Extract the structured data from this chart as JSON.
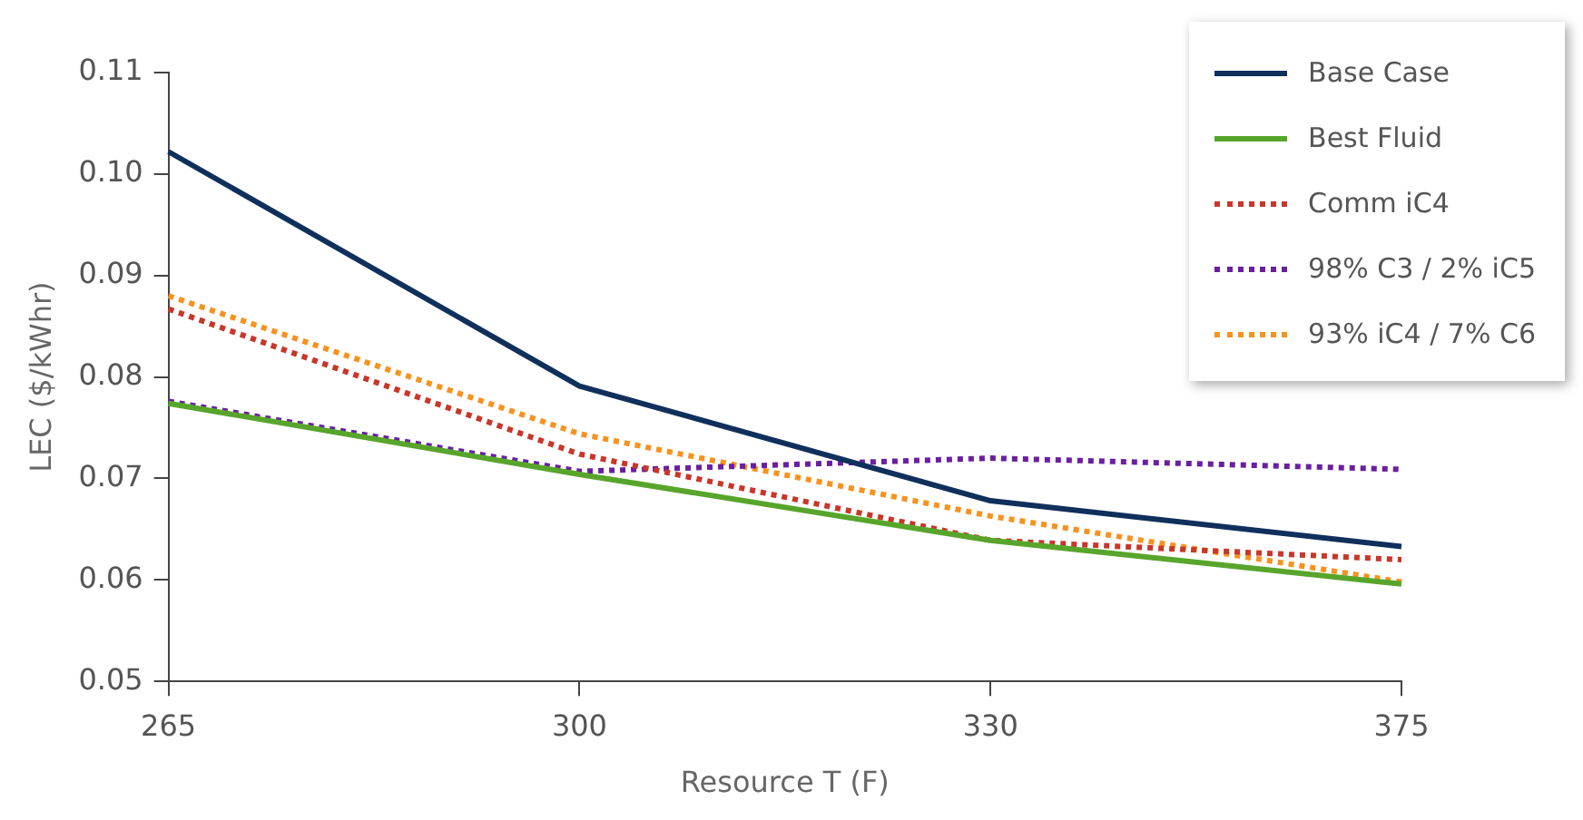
{
  "chart_data": {
    "type": "line",
    "xlabel": "Resource T (F)",
    "ylabel": "LEC ($/kWhr)",
    "categories": [
      "265",
      "300",
      "330",
      "375"
    ],
    "ylim": [
      0.05,
      0.11
    ],
    "yticks": [
      {
        "value": 0.05,
        "label": "0.05"
      },
      {
        "value": 0.06,
        "label": "0.06"
      },
      {
        "value": 0.07,
        "label": "0.07"
      },
      {
        "value": 0.08,
        "label": "0.08"
      },
      {
        "value": 0.09,
        "label": "0.09"
      },
      {
        "value": 0.1,
        "label": "0.10"
      },
      {
        "value": 0.11,
        "label": "0.11"
      }
    ],
    "grid": false,
    "legend": "top right",
    "marker": "none",
    "series": [
      {
        "name": "Base Case",
        "color": "#10305c",
        "line_style": "solid",
        "values": [
          0.1022,
          0.0791,
          0.0678,
          0.0633
        ]
      },
      {
        "name": "Best Fluid",
        "color": "#58a52c",
        "line_style": "solid",
        "values": [
          0.0774,
          0.0704,
          0.0639,
          0.0596
        ]
      },
      {
        "name": "Comm iC4",
        "color": "#c8372a",
        "line_style": "dotted",
        "values": [
          0.0867,
          0.0724,
          0.0639,
          0.062
        ]
      },
      {
        "name": "98% C3 / 2% iC5",
        "color": "#6a1fa0",
        "line_style": "dotted",
        "values": [
          0.0776,
          0.0707,
          0.072,
          0.0709
        ]
      },
      {
        "name": "93% iC4 / 7% C6",
        "color": "#f7921e",
        "line_style": "dotted",
        "values": [
          0.088,
          0.0744,
          0.0663,
          0.0598
        ]
      }
    ]
  }
}
